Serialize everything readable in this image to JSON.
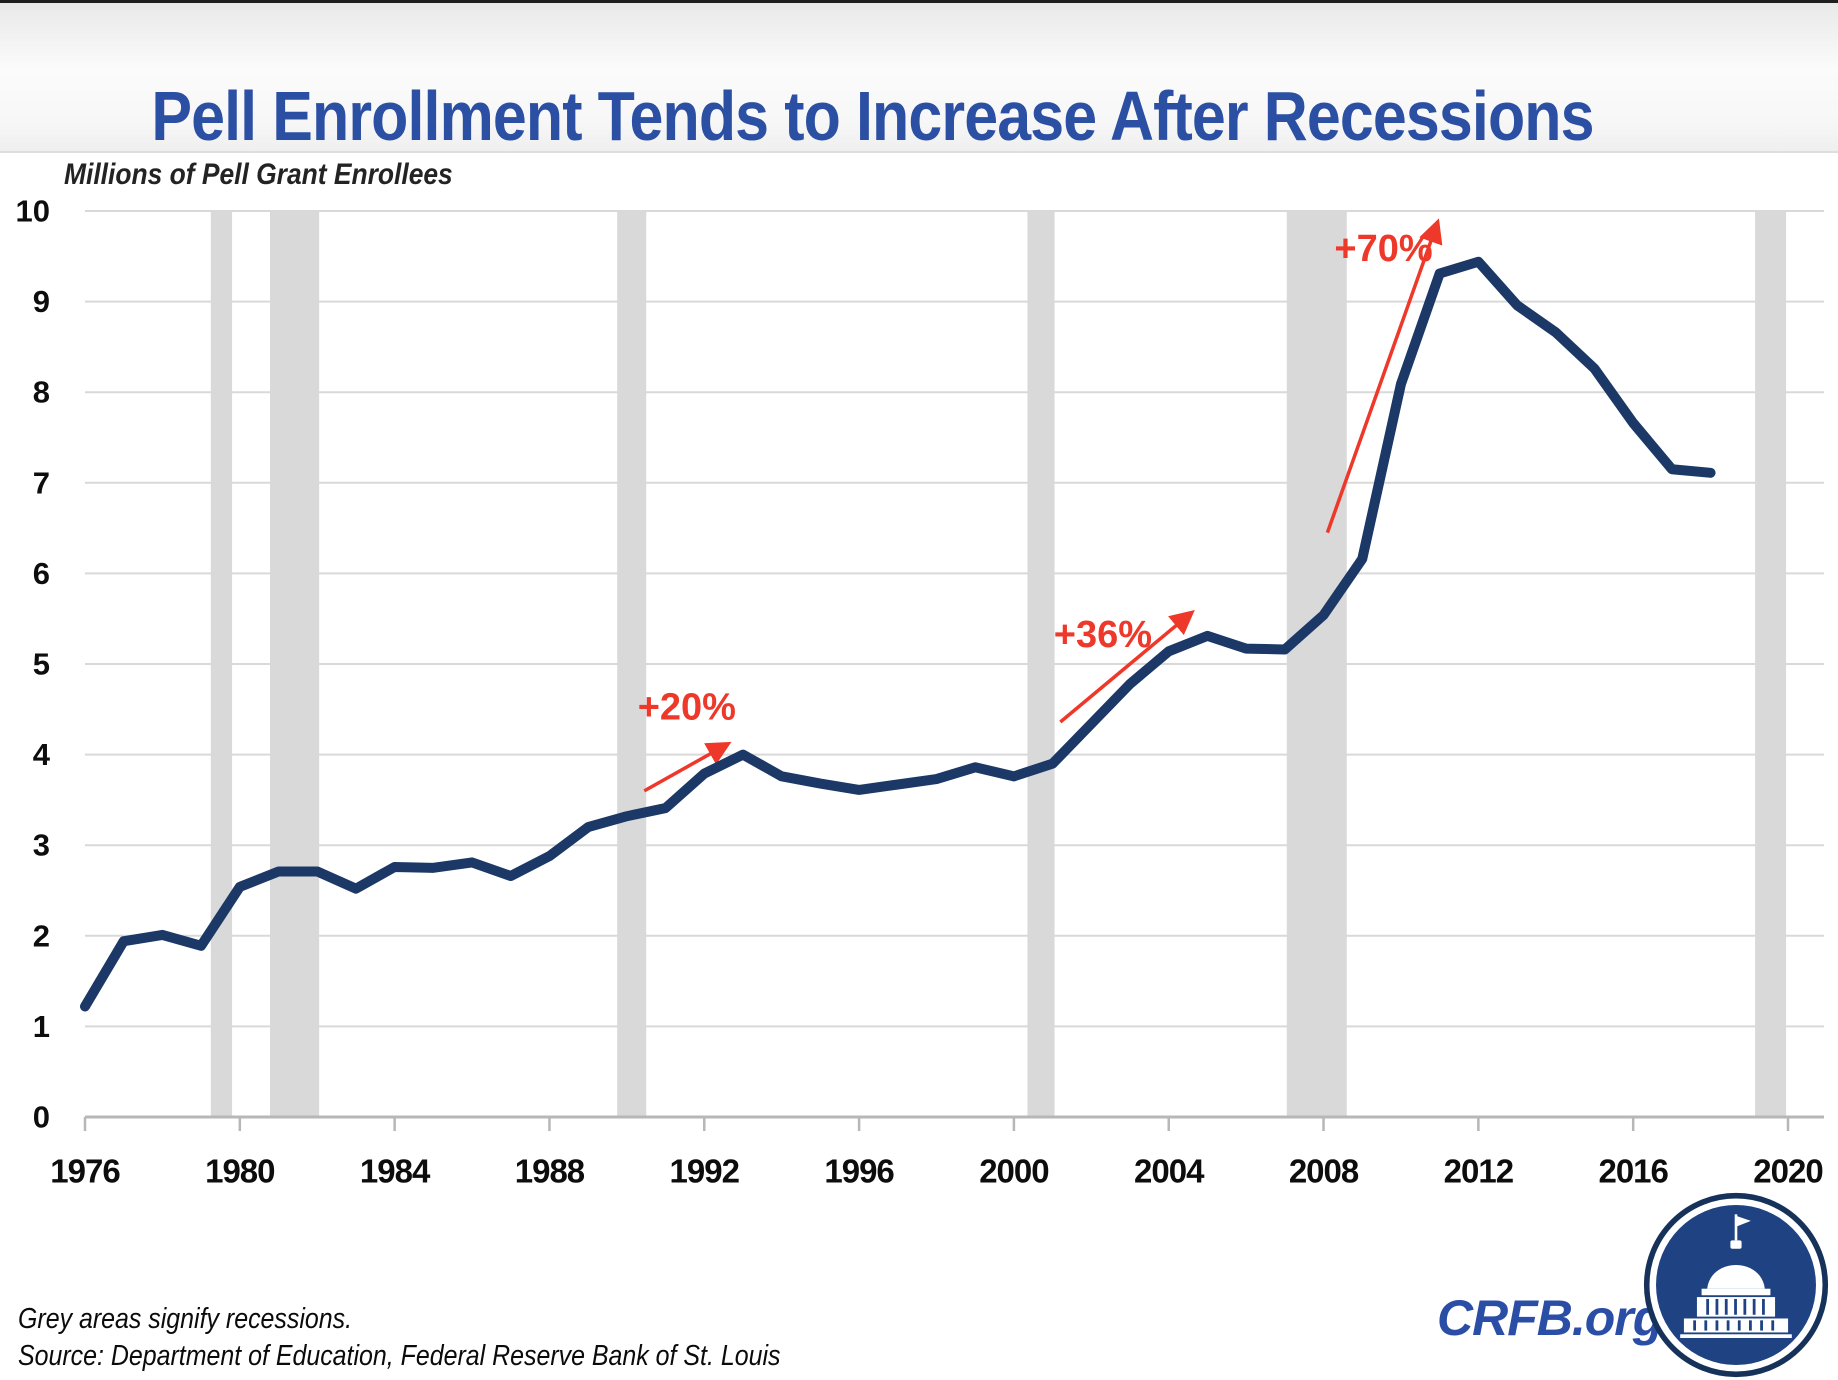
{
  "chart_data": {
    "type": "line",
    "title": "Pell Enrollment Tends to Increase After Recessions",
    "units_caption": "Millions of Pell Grant Enrollees",
    "xlabel": "",
    "ylabel": "",
    "xlim": [
      1976,
      2020
    ],
    "ylim": [
      0,
      10
    ],
    "grid": true,
    "x_ticks": [
      1976,
      1980,
      1984,
      1988,
      1992,
      1996,
      2000,
      2004,
      2008,
      2012,
      2016,
      2020
    ],
    "y_ticks": [
      0,
      1,
      2,
      3,
      4,
      5,
      6,
      7,
      8,
      9,
      10
    ],
    "years": [
      1976,
      1977,
      1978,
      1979,
      1980,
      1981,
      1982,
      1983,
      1984,
      1985,
      1986,
      1987,
      1988,
      1989,
      1990,
      1991,
      1992,
      1993,
      1994,
      1995,
      1996,
      1997,
      1998,
      1999,
      2000,
      2001,
      2002,
      2003,
      2004,
      2005,
      2006,
      2007,
      2008,
      2009,
      2010,
      2011,
      2012,
      2013,
      2014,
      2015,
      2016,
      2017,
      2018
    ],
    "series": [
      {
        "name": "Pell Grant enrollees (millions)",
        "color": "#1b3866",
        "values": [
          1.22,
          1.94,
          2.01,
          1.89,
          2.54,
          2.71,
          2.71,
          2.52,
          2.76,
          2.75,
          2.81,
          2.66,
          2.88,
          3.2,
          3.32,
          3.41,
          3.79,
          4.0,
          3.76,
          3.68,
          3.61,
          3.67,
          3.73,
          3.86,
          3.76,
          3.9,
          4.34,
          4.78,
          5.14,
          5.31,
          5.17,
          5.16,
          5.54,
          6.16,
          8.09,
          9.31,
          9.44,
          8.96,
          8.66,
          8.26,
          7.66,
          7.15,
          7.11
        ]
      }
    ],
    "recession_bands": [
      [
        1979.25,
        1979.8
      ],
      [
        1980.78,
        1982.05
      ],
      [
        1989.75,
        1990.5
      ],
      [
        2000.35,
        2001.05
      ],
      [
        2007.05,
        2008.6
      ],
      [
        2019.15,
        2019.95
      ]
    ],
    "recession_band_color": "#d9d9d9",
    "annotation_color": "#ed382a",
    "annotations": [
      {
        "label": "+20%",
        "label_x": 1991.55,
        "label_y": 4.52,
        "arrow_from": [
          1990.45,
          3.6
        ],
        "arrow_to": [
          1992.62,
          4.12
        ]
      },
      {
        "label": "+36%",
        "label_x": 2002.3,
        "label_y": 5.32,
        "arrow_from": [
          2001.2,
          4.36
        ],
        "arrow_to": [
          2004.6,
          5.57
        ]
      },
      {
        "label": "+70%",
        "label_x": 2009.55,
        "label_y": 9.58,
        "arrow_from": [
          2008.1,
          6.45
        ],
        "arrow_to": [
          2010.95,
          9.88
        ]
      }
    ],
    "legend": null
  },
  "footer": {
    "note": "Grey areas signify recessions.",
    "source": "Source: Department of Education, Federal Reserve Bank of St. Louis"
  },
  "logo": {
    "text": "CRFB.org"
  },
  "colors": {
    "title_blue": "#2b4fa3",
    "line_navy": "#1b3866",
    "annotation_red": "#ed382a",
    "recession_grey": "#d9d9d9",
    "logo_blue": "#2a4da6",
    "seal_navy": "#16325a",
    "seal_disc": "#1e4282"
  }
}
